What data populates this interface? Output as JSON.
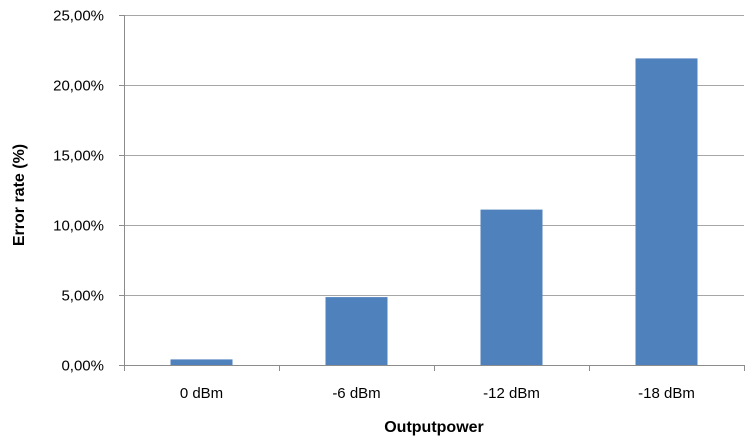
{
  "chart_data": {
    "type": "bar",
    "categories": [
      "0 dBm",
      "-6 dBm",
      "-12 dBm",
      "-18 dBm"
    ],
    "values": [
      0.4,
      4.85,
      11.1,
      21.9
    ],
    "xlabel": "Outputpower",
    "ylabel": "Error rate (%)",
    "ylim": [
      0,
      25
    ],
    "yticks": [
      0,
      5,
      10,
      15,
      20,
      25
    ],
    "ytick_labels": [
      "0,00%",
      "5,00%",
      "10,00%",
      "15,00%",
      "20,00%",
      "25,00%"
    ],
    "grid": true,
    "legend": "none",
    "bar_color": "#4f81bd"
  }
}
